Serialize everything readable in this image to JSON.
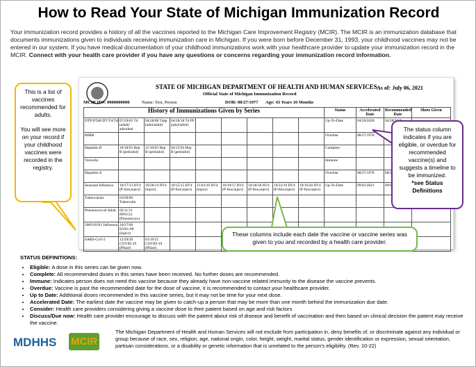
{
  "title": "How to Read Your State of Michigan Immunization Record",
  "intro": {
    "text": "Your immunization record provides a history of all the vaccines reported to the Michigan Care Improvement Registry (MCIR). The MCIR is an immunization database that documents immunizations given to individuals receiving immunization care in Michigan. If you were born before December 31, 1993, your childhood vaccines may not be entered in our system. If you have medical documentation of your childhood immunizations work with your healthcare provider to update your immunization record in the MCIR.",
    "bold": "Connect with your health care provider if you have any questions or concerns regarding your immunization record information."
  },
  "record": {
    "department": "STATE OF MICHIGAN DEPARTMENT OF HEALTH AND HUMAN SERVICES",
    "as_of": "As of: July 06, 2021",
    "subtitle": "Official State of Michigan Immunization Record",
    "mcir_id": "MCIR ID#: 0000000000",
    "name": "Name: Test, Person",
    "dob": "DOB: 08/27/1977",
    "age": "Age: 43 Years 10 Months",
    "table": {
      "heading": "History of Immunizations Given by Series",
      "columns": [
        "Status",
        "Accelerated Date",
        "Recommended Date",
        "Shots Given"
      ],
      "rows": [
        {
          "series": "DTP/DTaP/DT/Td/Tdap",
          "doses": [
            "07/29/02 Td (adult) adsorbed",
            "04/28/08 Tdap (adol/adult)",
            "04/28/18 Td PF (adol/adult)"
          ],
          "status": "Up-To-Date",
          "accelerated": "04/20/2028",
          "recommended": "04/28/2028"
        },
        {
          "series": "MMR",
          "doses": [],
          "status": "Overdue",
          "accelerated": "08/27/1978",
          "recommended": "08/27/1978"
        },
        {
          "series": "Hepatitis B",
          "doses": [
            "10/18/93 Hep B (ped/adol)",
            "11/16/93 Hep B (ped/adol)",
            "04/15/94 Hep B (ped/adol)"
          ],
          "status": "Complete"
        },
        {
          "series": "Varicella",
          "doses": [],
          "status": "Immune"
        },
        {
          "series": "Hepatitis A",
          "doses": [],
          "status": "Overdue",
          "accelerated": "08/27/1978",
          "recommended": "08/27/1978"
        },
        {
          "series": "Seasonal Influenza",
          "doses": [
            "10/17/13 IIV4 (P-free,inject)",
            "10/28/14 IIV4 (inject)",
            "10/15/15 IIV4 (P-free,inject)",
            "11/03/16 IIV4 (inject)",
            "10/19/17 IIV4 (P-free,inject)",
            "10/18/18 IIV4 (P-free,inject)",
            "10/22/19 IIV4 (P-free,inject)",
            "10/16/20 IIV4 (P-free,inject)"
          ],
          "status": "Up-To-Date",
          "accelerated": "09/01/2021",
          "recommended": "09/01/2021"
        },
        {
          "series": "Tuberculosis",
          "doses": [
            "03/09/09 Tuberculin"
          ]
        },
        {
          "series": "Pneumococcal Adult",
          "doses": [
            "02/11/11 PPSV23 (Pneumovax)"
          ]
        },
        {
          "series": "2009 H1N1 Influenza",
          "doses": [
            "10/27/09 H1N1-09 (Inject)"
          ]
        },
        {
          "series": "SARS-CoV-2",
          "doses": [
            "12/29/20 COVID-19 (Pfizer)",
            "01/19/21 COVID-19 (Pfizer)"
          ]
        }
      ]
    }
  },
  "callouts": {
    "left": [
      "This is a list of vaccines recommended for adults.",
      "You will see more on your record if your childhood vaccines were recorded in the registry."
    ],
    "right": {
      "text": "The status column indicates if you are eligible, or overdue for recommended vaccine(s) and suggests a timeline to be immunized.",
      "bold": "*see Status Definitions"
    },
    "bottom": "These columns include each date the vaccine or vaccine series was given to you and recorded by a health care provider."
  },
  "status_definitions": {
    "heading": "STATUS DEFINITIONS:",
    "items": [
      {
        "term": "Eligible:",
        "text": "A dose in this series can be given now."
      },
      {
        "term": "Complete:",
        "text": "All recommended doses in this series have been received. No further doses are recommended."
      },
      {
        "term": "Immune:",
        "text": "Indicates person does not need this vaccine because they already have non-vaccine related immunity to the disease the vaccine prevents."
      },
      {
        "term": "Overdue:",
        "text": "Vaccine is past the recommended date for the dose of vaccine, it is recommended to contact your healthcare provider."
      },
      {
        "term": "Up to Date:",
        "text": "Additional doses recommended in this vaccine series, but it may not be time for your next dose."
      },
      {
        "term": "Accelerated Date:",
        "text": "The earliest date the vaccine may be given to catch-up a person that may be more than one month behind the immunization due date."
      },
      {
        "term": "Consider:",
        "text": "Health care providers considering giving a vaccine dose to their patient based on age and risk factors"
      },
      {
        "term": "Discuss/Due now:",
        "text": "Health care provider encourage to discuss with the patient about risk of disease and benefit of vaccination and then based on clinical decision the patient may receive the vaccine."
      }
    ]
  },
  "footer": {
    "logo1": "MDHHS",
    "logo2": "MCIR",
    "text": "The Michigan Department of Health and Human Services will not exclude from participation in, deny benefits of, or discriminate against any individual or group because of race, sex, religion, age, national origin, color, height, weight, marital status, gender identification or expression, sexual orientation, partisan considerations, or a disability or genetic information that is unrelated to the person's eligibility. (Rev. 10-22)"
  }
}
